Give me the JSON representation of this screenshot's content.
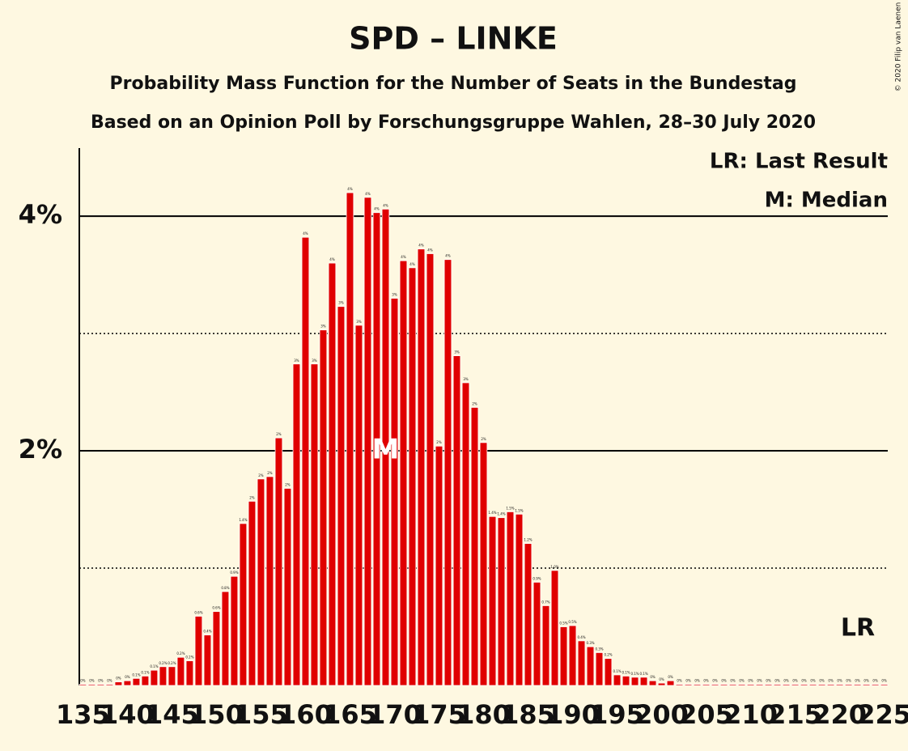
{
  "chart_data": {
    "type": "bar",
    "title": "SPD – LINKE",
    "subtitle": "Probability Mass Function for the Number of Seats in the Bundestag",
    "subtitle2": "Based on an Opinion Poll by Forschungsgruppe Wahlen, 28–30 July 2020",
    "copyright": "© 2020 Filip van Laenen",
    "legend": [
      "LR: Last Result",
      "M: Median"
    ],
    "last_result_label": "LR",
    "median": 169,
    "median_label": "M",
    "color": "#e00000",
    "x": [
      135,
      136,
      137,
      138,
      139,
      140,
      141,
      142,
      143,
      144,
      145,
      146,
      147,
      148,
      149,
      150,
      151,
      152,
      153,
      154,
      155,
      156,
      157,
      158,
      159,
      160,
      161,
      162,
      163,
      164,
      165,
      166,
      167,
      168,
      169,
      170,
      171,
      172,
      173,
      174,
      175,
      176,
      177,
      178,
      179,
      180,
      181,
      182,
      183,
      184,
      185,
      186,
      187,
      188,
      189,
      190,
      191,
      192,
      193,
      194,
      195,
      196,
      197,
      198,
      199,
      200,
      201,
      202,
      203,
      204,
      205,
      206,
      207,
      208,
      209,
      210,
      211,
      212,
      213,
      214,
      215,
      216,
      217,
      218,
      219,
      220,
      221,
      222,
      223,
      224,
      225
    ],
    "values": [
      0.01,
      0.01,
      0.01,
      0.01,
      0.03,
      0.04,
      0.06,
      0.08,
      0.13,
      0.16,
      0.16,
      0.24,
      0.21,
      0.59,
      0.43,
      0.63,
      0.8,
      0.93,
      1.38,
      1.57,
      1.76,
      1.78,
      2.11,
      1.68,
      2.74,
      3.82,
      2.74,
      3.03,
      3.6,
      3.23,
      4.2,
      3.07,
      4.16,
      4.03,
      4.06,
      3.3,
      3.62,
      3.56,
      3.72,
      3.68,
      2.04,
      3.63,
      2.81,
      2.58,
      2.37,
      2.07,
      1.44,
      1.43,
      1.48,
      1.46,
      1.21,
      0.88,
      0.68,
      0.98,
      0.5,
      0.51,
      0.38,
      0.33,
      0.28,
      0.23,
      0.09,
      0.08,
      0.07,
      0.07,
      0.04,
      0.02,
      0.04,
      0.01,
      0.01,
      0.01,
      0.01,
      0.01,
      0.01,
      0.01,
      0.01,
      0.01,
      0.01,
      0.01,
      0.01,
      0.01,
      0.01,
      0.01,
      0.01,
      0.01,
      0.01,
      0.01,
      0.01,
      0.01,
      0.01,
      0.01,
      0.01
    ],
    "value_labels": [
      "0%",
      "0%",
      "0%",
      "0%",
      "0%",
      "0%",
      "0.1%",
      "0.1%",
      "0.1%",
      "0.2%",
      "0.2%",
      "0.2%",
      "0.2%",
      "0.6%",
      "0.4%",
      "0.6%",
      "0.8%",
      "0.9%",
      "1.4%",
      "2%",
      "2%",
      "2%",
      "2%",
      "2%",
      "3%",
      "4%",
      "3%",
      "3%",
      "4%",
      "3%",
      "4%",
      "3%",
      "4%",
      "4%",
      "4%",
      "3%",
      "4%",
      "4%",
      "4%",
      "4%",
      "2%",
      "4%",
      "3%",
      "3%",
      "2%",
      "2%",
      "1.4%",
      "1.4%",
      "1.5%",
      "1.5%",
      "1.2%",
      "0.9%",
      "0.7%",
      "1.0%",
      "0.5%",
      "0.5%",
      "0.4%",
      "0.3%",
      "0.3%",
      "0.2%",
      "0.1%",
      "0.1%",
      "0.1%",
      "0.1%",
      "0%",
      "0%",
      "0%",
      "0%",
      "0%",
      "0%",
      "0%",
      "0%",
      "0%",
      "0%",
      "0%",
      "0%",
      "0%",
      "0%",
      "0%",
      "0%",
      "0%",
      "0%",
      "0%",
      "0%",
      "0%",
      "0%",
      "0%",
      "0%",
      "0%",
      "0%",
      "0%"
    ],
    "xlim": [
      134.6,
      225.4
    ],
    "xticks": [
      135,
      140,
      145,
      150,
      155,
      160,
      165,
      170,
      175,
      180,
      185,
      190,
      195,
      200,
      205,
      210,
      215,
      220,
      225
    ],
    "ylim": [
      0,
      4.58
    ],
    "yticks": [
      {
        "value": 2,
        "label": "2%"
      },
      {
        "value": 4,
        "label": "4%"
      }
    ],
    "minor_yticks": [
      1,
      3
    ],
    "grid": true
  }
}
